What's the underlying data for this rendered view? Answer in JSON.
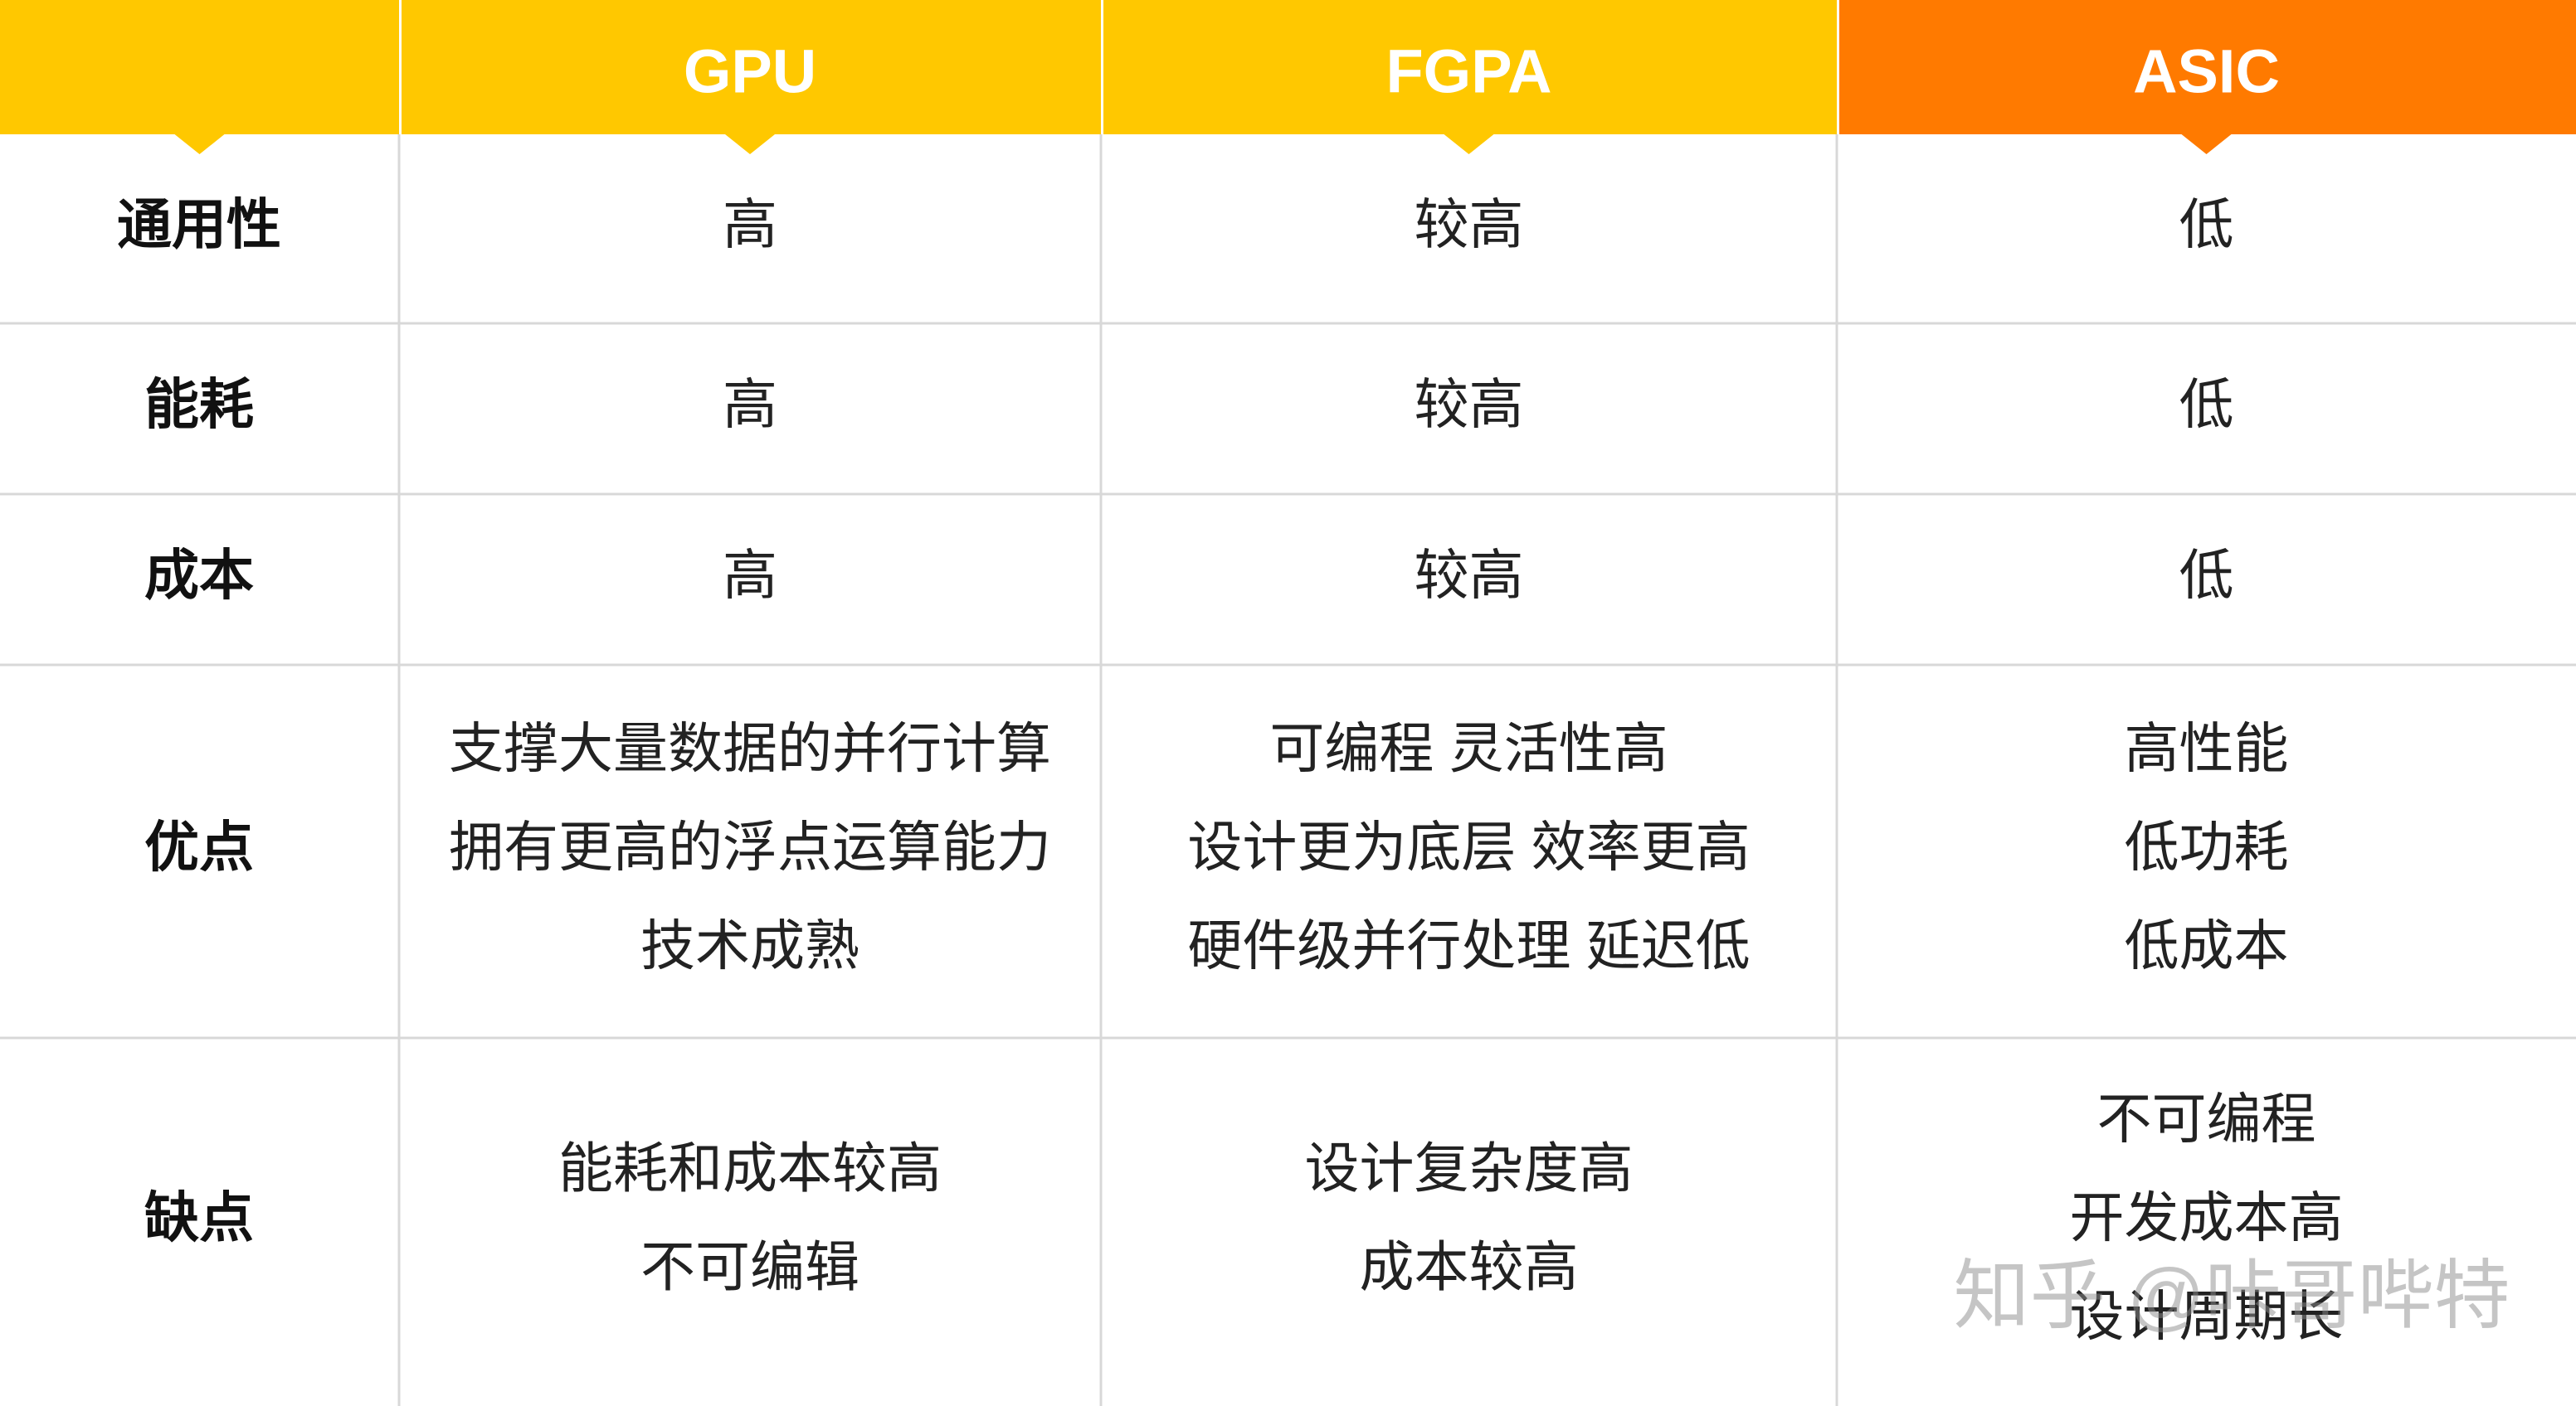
{
  "table": {
    "columns": [
      "GPU",
      "FGPA",
      "ASIC"
    ],
    "rows": [
      {
        "label": "通用性",
        "cells": [
          [
            "高"
          ],
          [
            "较高"
          ],
          [
            "低"
          ]
        ]
      },
      {
        "label": "能耗",
        "cells": [
          [
            "高"
          ],
          [
            "较高"
          ],
          [
            "低"
          ]
        ]
      },
      {
        "label": "成本",
        "cells": [
          [
            "高"
          ],
          [
            "较高"
          ],
          [
            "低"
          ]
        ]
      },
      {
        "label": "优点",
        "cells": [
          [
            "支撑大量数据的并行计算",
            "拥有更高的浮点运算能力",
            "技术成熟"
          ],
          [
            "可编程 灵活性高",
            "设计更为底层 效率更高",
            "硬件级并行处理 延迟低"
          ],
          [
            "高性能",
            "低功耗",
            "低成本"
          ]
        ]
      },
      {
        "label": "缺点",
        "cells": [
          [
            "能耗和成本较高",
            "不可编辑"
          ],
          [
            "设计复杂度高",
            "成本较高"
          ],
          [
            "不可编程",
            "开发成本高",
            "设计周期长"
          ]
        ]
      }
    ]
  },
  "watermark": "知乎 @咔哥哔特"
}
